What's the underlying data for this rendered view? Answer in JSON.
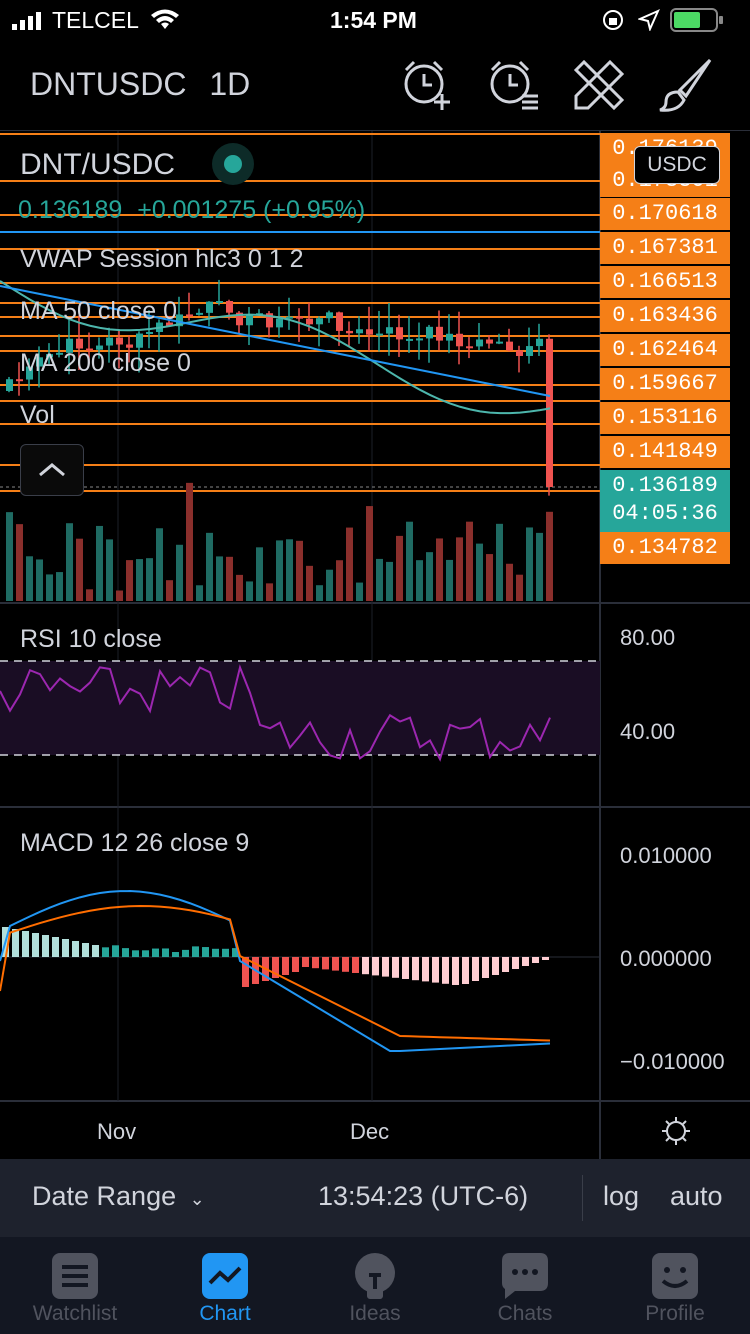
{
  "status_bar": {
    "carrier": "TELCEL",
    "time": "1:54 PM"
  },
  "header": {
    "symbol": "DNTUSDC",
    "interval": "1D"
  },
  "chart": {
    "pair": "DNT/USDC",
    "last": "0.136189",
    "change": "+0.001275 (+0.95%)",
    "indicators": [
      "VWAP Session hlc3 0 1 2",
      "MA 50 close 0",
      "MA 200 close 0",
      "Vol"
    ],
    "currency_badge": "USDC",
    "price_levels": [
      "0.176139",
      "0.173301",
      "0.170618",
      "0.167381",
      "0.166513",
      "0.163436",
      "0.162464",
      "0.159667",
      "0.153116",
      "0.141849"
    ],
    "current_price": "0.136189",
    "countdown": "04:05:36",
    "low_level": "0.134782",
    "rsi": {
      "title": "RSI 10 close",
      "levels": [
        "80.00",
        "40.00"
      ]
    },
    "macd": {
      "title": "MACD 12 26 close 9",
      "levels": [
        "0.010000",
        "0.000000",
        "−0.010000"
      ]
    },
    "time_axis": [
      "Nov",
      "Dec"
    ]
  },
  "toolbar": {
    "date_range": "Date Range",
    "clock": "13:54:23 (UTC-6)",
    "log": "log",
    "auto": "auto"
  },
  "tabs": [
    {
      "label": "Watchlist",
      "icon": "list-icon"
    },
    {
      "label": "Chart",
      "icon": "chart-icon"
    },
    {
      "label": "Ideas",
      "icon": "lightbulb-icon"
    },
    {
      "label": "Chats",
      "icon": "chat-icon"
    },
    {
      "label": "Profile",
      "icon": "smiley-icon"
    }
  ],
  "colors": {
    "accent": "#2196f3",
    "orange": "#f57f17",
    "teal": "#26a69a",
    "red": "#ef5350",
    "rsi": "#9c27b0"
  }
}
